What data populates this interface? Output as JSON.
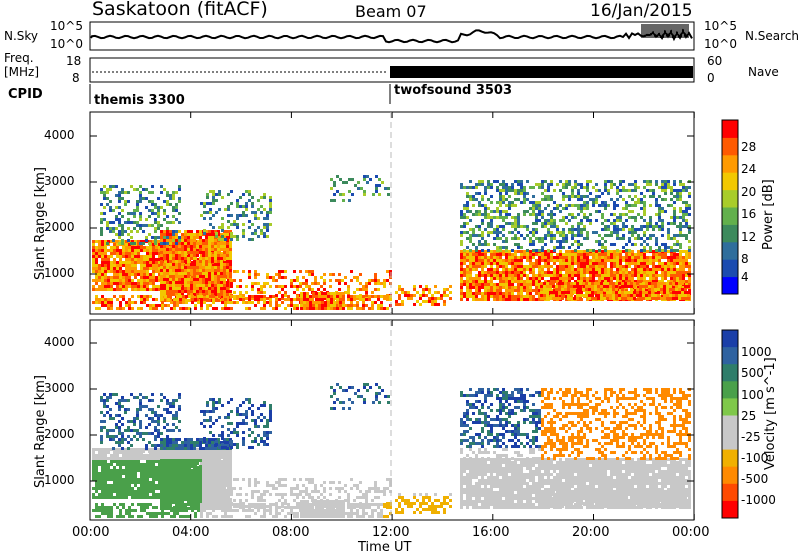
{
  "header": {
    "station": "Saskatoon (fitACF)",
    "beam": "Beam 07",
    "date": "16/Jan/2015"
  },
  "top_panel": {
    "left_label_top": "N.Sky",
    "left_tick_high": "10^5",
    "left_tick_low": "10^0",
    "right_tick_high": "10^5",
    "right_tick_low": "10^0",
    "right_label": "N.Search",
    "freq_label_line1": "Freq.",
    "freq_label_line2": "[MHz]",
    "freq_tick_high": "18",
    "freq_tick_low": "8",
    "nave_tick_high": "60",
    "nave_tick_low": "0",
    "nave_label": "Nave",
    "cpid_label": "CPID",
    "cpid_modes": [
      "themis 3300",
      "twofsound 3503"
    ]
  },
  "colors": {
    "power_scale": [
      "#0000ff",
      "#1b4bb0",
      "#2f6e9c",
      "#3c8a5c",
      "#62b04c",
      "#a8cc2a",
      "#f2c800",
      "#ff9a00",
      "#ff5a00",
      "#ff0000"
    ],
    "velocity_scale": [
      "#1b3fa8",
      "#2f62a0",
      "#2f7d6a",
      "#4aa04a",
      "#7fc84a",
      "#c8c8c8",
      "#c8c8c8",
      "#f0b000",
      "#ff8a00",
      "#ff4a00",
      "#ff0000"
    ]
  },
  "chart_data": [
    {
      "type": "heatmap",
      "title": "Power",
      "xlabel": "",
      "ylabel": "Slant Range [km]",
      "y_ticks": [
        "1000",
        "2000",
        "3000",
        "4000"
      ],
      "ylim": [
        200,
        4600
      ],
      "colorbar_label": "Power [dB]",
      "colorbar_ticks": [
        "28",
        "24",
        "20",
        "16",
        "12",
        "8",
        "4"
      ],
      "colorbar_range": [
        0,
        30
      ]
    },
    {
      "type": "heatmap",
      "title": "Velocity",
      "xlabel": "Time UT",
      "ylabel": "Slant Range [km]",
      "x_ticks": [
        "00:00",
        "04:00",
        "08:00",
        "12:00",
        "16:00",
        "20:00",
        "00:00"
      ],
      "y_ticks": [
        "1000",
        "2000",
        "3000",
        "4000"
      ],
      "ylim": [
        200,
        4600
      ],
      "colorbar_label": "Velocity [m s^-1]",
      "colorbar_ticks": [
        "1000",
        "500",
        "100",
        "25",
        "-25",
        "-100",
        "-500",
        "-1000"
      ]
    }
  ]
}
